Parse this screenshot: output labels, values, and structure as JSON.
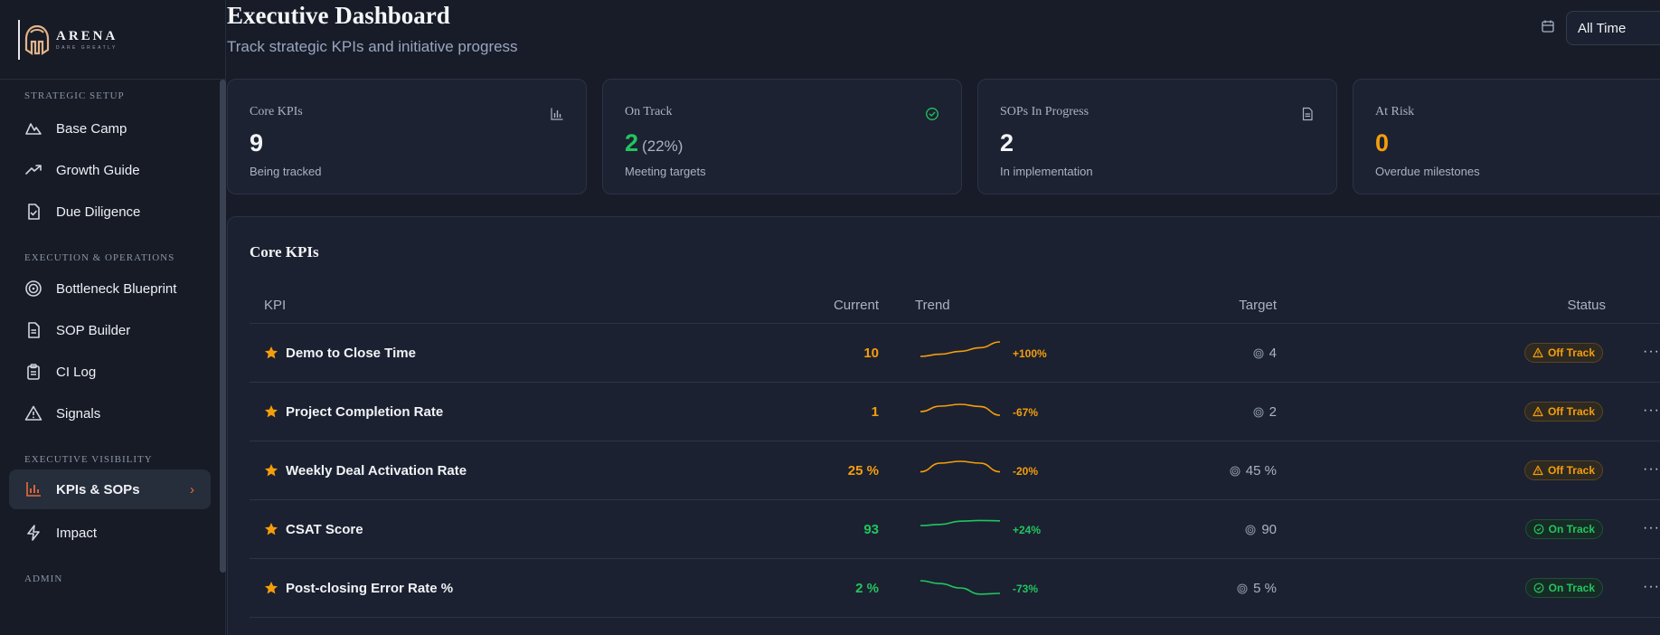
{
  "brand": {
    "name": "ARENA",
    "tagline": "DARE GREATLY"
  },
  "sidebar": {
    "sections": [
      {
        "title": "STRATEGIC SETUP",
        "items": [
          {
            "label": "Base Camp",
            "icon": "mountain-icon"
          },
          {
            "label": "Growth Guide",
            "icon": "trending-up-icon"
          },
          {
            "label": "Due Diligence",
            "icon": "file-check-icon"
          }
        ]
      },
      {
        "title": "EXECUTION & OPERATIONS",
        "items": [
          {
            "label": "Bottleneck Blueprint",
            "icon": "target-icon"
          },
          {
            "label": "SOP Builder",
            "icon": "file-text-icon"
          },
          {
            "label": "CI Log",
            "icon": "clipboard-icon"
          },
          {
            "label": "Signals",
            "icon": "alert-triangle-icon"
          }
        ]
      },
      {
        "title": "EXECUTIVE VISIBILITY",
        "items": [
          {
            "label": "KPIs & SOPs",
            "icon": "bar-chart-icon",
            "active": true
          },
          {
            "label": "Impact",
            "icon": "zap-icon"
          }
        ]
      },
      {
        "title": "ADMIN",
        "items": []
      }
    ]
  },
  "header": {
    "title": "Executive Dashboard",
    "subtitle": "Track strategic KPIs and initiative progress",
    "date_filter": "All Time"
  },
  "stats": [
    {
      "label": "Core KPIs",
      "value": "9",
      "pct": "",
      "desc": "Being tracked",
      "icon": "bar-chart-icon",
      "value_color": "#f3f4f6"
    },
    {
      "label": "On Track",
      "value": "2",
      "pct": "(22%)",
      "desc": "Meeting targets",
      "icon": "check-circle-icon",
      "value_color": "#22c55e"
    },
    {
      "label": "SOPs In Progress",
      "value": "2",
      "pct": "",
      "desc": "In implementation",
      "icon": "file-text-icon",
      "value_color": "#f3f4f6"
    },
    {
      "label": "At Risk",
      "value": "0",
      "pct": "",
      "desc": "Overdue milestones",
      "icon": "alert-icon",
      "value_color": "#f59e0b"
    }
  ],
  "kpi_table": {
    "title": "Core KPIs",
    "columns": {
      "kpi": "KPI",
      "current": "Current",
      "trend": "Trend",
      "target": "Target",
      "status": "Status"
    },
    "rows": [
      {
        "name": "Demo to Close Time",
        "current": "10",
        "trend": "+100%",
        "target": "4",
        "status": "Off Track",
        "state": "off",
        "spark": [
          2,
          2.6,
          3.4,
          4.4,
          6
        ]
      },
      {
        "name": "Project Completion Rate",
        "current": "1",
        "trend": "-67%",
        "target": "2",
        "status": "Off Track",
        "state": "off",
        "spark": [
          3,
          4.5,
          5,
          4.4,
          2
        ]
      },
      {
        "name": "Weekly Deal Activation Rate",
        "current": "25 %",
        "trend": "-20%",
        "target": "45 %",
        "status": "Off Track",
        "state": "off",
        "spark": [
          2.6,
          5,
          5.5,
          5,
          2.6
        ]
      },
      {
        "name": "CSAT Score",
        "current": "93",
        "trend": "+24%",
        "target": "90",
        "status": "On Track",
        "state": "on",
        "spark": [
          4,
          4.3,
          5.2,
          5.4,
          5.3
        ]
      },
      {
        "name": "Post-closing Error Rate %",
        "current": "2 %",
        "trend": "-73%",
        "target": "5 %",
        "status": "On Track",
        "state": "on",
        "spark": [
          5,
          4.2,
          3,
          1.3,
          1.5
        ]
      }
    ]
  },
  "colors": {
    "accent": "#e96d3b",
    "off_track": "#f59e0b",
    "on_track": "#22c55e"
  }
}
